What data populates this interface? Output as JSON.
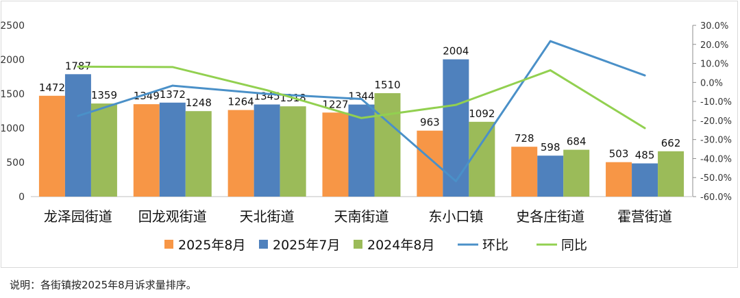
{
  "chart_data": {
    "type": "bar",
    "categories": [
      "龙泽园街道",
      "回龙观街道",
      "天北街道",
      "天南街道",
      "东小口镇",
      "史各庄街道",
      "霍营街道"
    ],
    "series": [
      {
        "name": "2025年8月",
        "type": "bar",
        "color": "#F79646",
        "values": [
          1472,
          1349,
          1264,
          1227,
          963,
          728,
          503
        ]
      },
      {
        "name": "2025年7月",
        "type": "bar",
        "color": "#4F81BD",
        "values": [
          1787,
          1372,
          1345,
          1344,
          2004,
          598,
          485
        ]
      },
      {
        "name": "2024年8月",
        "type": "bar",
        "color": "#9BBB59",
        "values": [
          1359,
          1248,
          1318,
          1510,
          1092,
          684,
          662
        ]
      },
      {
        "name": "环比",
        "type": "line",
        "axis": "right",
        "color": "#4A90C8",
        "values": [
          -17.6,
          -1.7,
          -6.0,
          -8.7,
          -51.9,
          21.7,
          3.7
        ]
      },
      {
        "name": "同比",
        "type": "line",
        "axis": "right",
        "color": "#92D050",
        "values": [
          8.3,
          8.1,
          -4.1,
          -18.7,
          -11.8,
          6.4,
          -24.0
        ]
      }
    ],
    "ylim": [
      0,
      2500
    ],
    "yticks": [
      "0",
      "500",
      "1000",
      "1500",
      "2000",
      "2500"
    ],
    "y2lim": [
      -60,
      30
    ],
    "y2ticks": [
      "-60.0%",
      "-50.0%",
      "-40.0%",
      "-30.0%",
      "-20.0%",
      "-10.0%",
      "0.0%",
      "10.0%",
      "20.0%",
      "30.0%"
    ],
    "legend_position": "bottom",
    "grid": false
  },
  "footnote": "说明：各街镇按2025年8月诉求量排序。"
}
